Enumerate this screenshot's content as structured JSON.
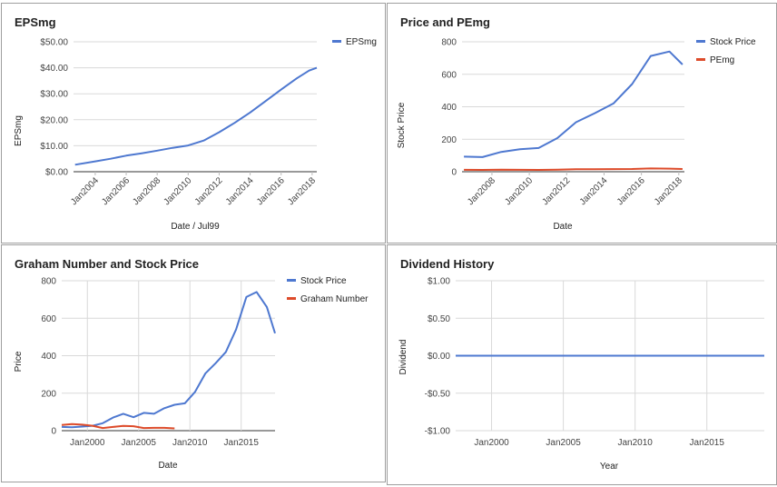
{
  "chart_data": [
    {
      "type": "line",
      "title": "EPSmg",
      "xlabel": "Date / Jul99",
      "ylabel": "EPSmg",
      "xlim": [
        2002.6,
        2018.3
      ],
      "ylim": [
        0,
        50
      ],
      "y_ticks": [
        0,
        10,
        20,
        30,
        40,
        50
      ],
      "y_tick_labels": [
        "$0.00",
        "$10.00",
        "$20.00",
        "$30.00",
        "$40.00",
        "$50.00"
      ],
      "x_ticks": [
        2004,
        2006,
        2008,
        2010,
        2012,
        2014,
        2016,
        2018
      ],
      "x_tick_labels": [
        "Jan2004",
        "Jan2006",
        "Jan2008",
        "Jan2010",
        "Jan2012",
        "Jan2014",
        "Jan2016",
        "Jan2018"
      ],
      "legend": "top-right",
      "series": [
        {
          "name": "EPSmg",
          "color": "#4e78d0",
          "x": [
            2002.7,
            2004,
            2005,
            2006,
            2007,
            2008,
            2009,
            2010,
            2011,
            2012,
            2013,
            2014,
            2015,
            2016,
            2017,
            2017.8,
            2018.3
          ],
          "y": [
            2.7,
            4.0,
            5.0,
            6.2,
            7.1,
            8.1,
            9.2,
            10.1,
            12.0,
            15.2,
            18.8,
            22.8,
            27.2,
            31.6,
            35.9,
            38.9,
            40.0
          ]
        }
      ]
    },
    {
      "type": "line",
      "title": "Price and PEmg",
      "xlabel": "Date",
      "ylabel": "Stock Price",
      "xlim": [
        2006.4,
        2018.3
      ],
      "ylim": [
        0,
        800
      ],
      "y_ticks": [
        0,
        200,
        400,
        600,
        800
      ],
      "y_tick_labels": [
        "0",
        "200",
        "400",
        "600",
        "800"
      ],
      "x_ticks": [
        2008,
        2010,
        2012,
        2014,
        2016,
        2018
      ],
      "x_tick_labels": [
        "Jan2008",
        "Jan2010",
        "Jan2012",
        "Jan2014",
        "Jan2016",
        "Jan2018"
      ],
      "legend": "top-right",
      "series": [
        {
          "name": "Stock Price",
          "color": "#4e78d0",
          "x": [
            2006.5,
            2007.5,
            2008.5,
            2009.5,
            2010.5,
            2011.5,
            2012.5,
            2013.5,
            2014.5,
            2015.5,
            2016.5,
            2017.5,
            2018.2
          ],
          "y": [
            93,
            90,
            122,
            138,
            146,
            207,
            305,
            360,
            420,
            540,
            713,
            740,
            660
          ]
        },
        {
          "name": "PEmg",
          "color": "#dd4b2a",
          "x": [
            2006.5,
            2007.5,
            2008.5,
            2009.5,
            2010.5,
            2011.5,
            2012.5,
            2013.5,
            2014.5,
            2015.5,
            2016.5,
            2017.5,
            2018.2
          ],
          "y": [
            12,
            11,
            13,
            12,
            11,
            13,
            15,
            15,
            16,
            17,
            20,
            19,
            17
          ]
        }
      ]
    },
    {
      "type": "line",
      "title": "Graham Number and Stock Price",
      "xlabel": "Date",
      "ylabel": "Price",
      "xlim": [
        1997.5,
        2018.3
      ],
      "ylim": [
        0,
        800
      ],
      "y_ticks": [
        0,
        200,
        400,
        600,
        800
      ],
      "y_tick_labels": [
        "0",
        "200",
        "400",
        "600",
        "800"
      ],
      "x_ticks": [
        2000,
        2005,
        2010,
        2015
      ],
      "x_tick_labels": [
        "Jan2000",
        "Jan2005",
        "Jan2010",
        "Jan2015"
      ],
      "legend": "top-right",
      "series": [
        {
          "name": "Stock Price",
          "color": "#4e78d0",
          "x": [
            1997.5,
            1998.5,
            1999.5,
            2000.5,
            2001.5,
            2002.5,
            2003.5,
            2004.5,
            2005.5,
            2006.5,
            2007.5,
            2008.5,
            2009.5,
            2010.5,
            2011.5,
            2012.5,
            2013.5,
            2014.5,
            2015.5,
            2016.5,
            2017.5,
            2018.3
          ],
          "y": [
            20,
            18,
            22,
            26,
            40,
            70,
            90,
            72,
            95,
            90,
            120,
            138,
            146,
            207,
            305,
            360,
            420,
            540,
            713,
            740,
            660,
            520
          ]
        },
        {
          "name": "Graham Number",
          "color": "#dd4b2a",
          "x": [
            1997.5,
            1998.5,
            1999.5,
            2000.5,
            2001.5,
            2002.5,
            2003.5,
            2004.5,
            2005.5,
            2006.5,
            2007.5,
            2008.5
          ],
          "y": [
            30,
            35,
            32,
            26,
            14,
            20,
            25,
            24,
            14,
            15,
            15,
            12
          ]
        }
      ]
    },
    {
      "type": "line",
      "title": "Dividend History",
      "xlabel": "Year",
      "ylabel": "Dividend",
      "xlim": [
        1997.5,
        2019.0
      ],
      "ylim": [
        -1,
        1
      ],
      "y_ticks": [
        -1,
        -0.5,
        0,
        0.5,
        1
      ],
      "y_tick_labels": [
        "-$1.00",
        "-$0.50",
        "$0.00",
        "$0.50",
        "$1.00"
      ],
      "x_ticks": [
        2000,
        2005,
        2010,
        2015
      ],
      "x_tick_labels": [
        "Jan2000",
        "Jan2005",
        "Jan2010",
        "Jan2015"
      ],
      "series": [
        {
          "color": "#4e78d0",
          "x": [
            1997.5,
            2019.0
          ],
          "y": [
            0,
            0
          ]
        }
      ]
    }
  ]
}
